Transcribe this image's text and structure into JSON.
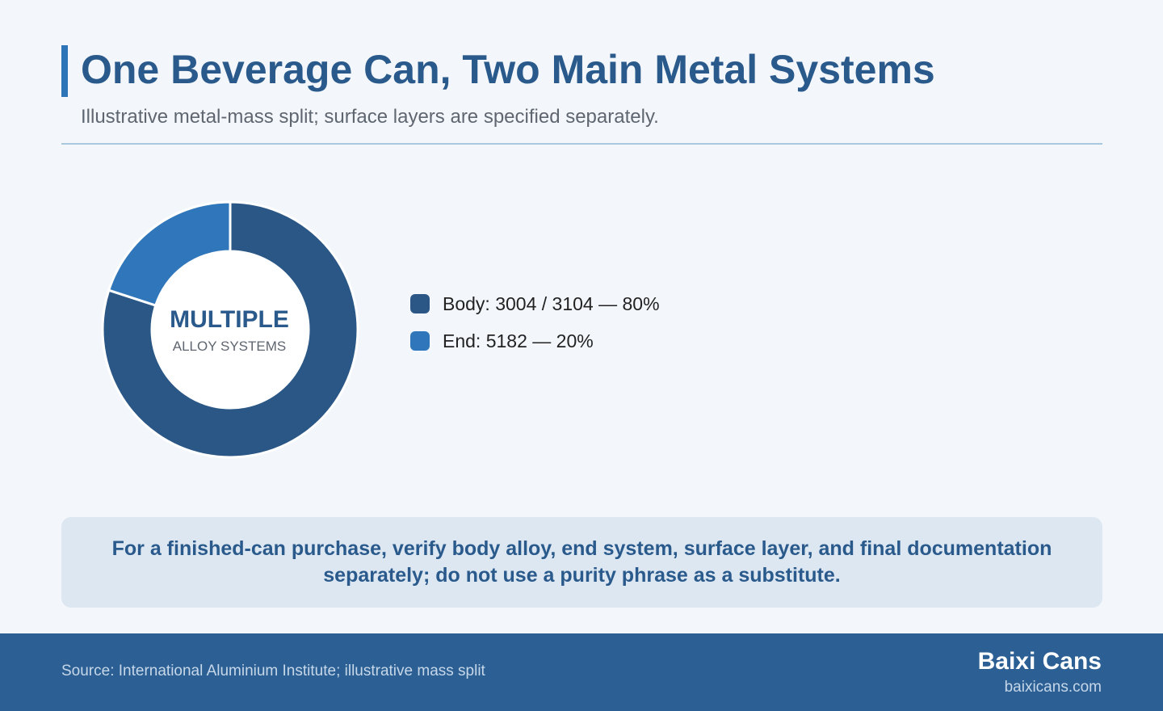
{
  "header": {
    "title": "One Beverage Can, Two Main Metal Systems",
    "subtitle": "Illustrative metal-mass split; surface layers are specified separately."
  },
  "chart_data": {
    "type": "pie",
    "variant": "donut",
    "center_label": "MULTIPLE",
    "center_sublabel": "ALLOY SYSTEMS",
    "series": [
      {
        "categories": [
          "Body: 3004 / 3104",
          "End: 5182"
        ],
        "values": [
          80,
          20
        ],
        "unit": "%"
      }
    ],
    "legend": {
      "placement": "right",
      "entries": [
        "Body: 3004 / 3104 — 80%",
        "End: 5182 — 20%"
      ]
    },
    "colors": [
      "#2a5785",
      "#2f76ba"
    ],
    "start_angle": "top",
    "direction": "clockwise"
  },
  "note": "For a finished-can purchase, verify body alloy, end system, surface layer, and final documentation separately; do not use a purity phrase as a substitute.",
  "footer": {
    "source": "Source: International Aluminium Institute; illustrative mass split",
    "brand": "Baixi Cans",
    "url": "baixicans.com"
  }
}
